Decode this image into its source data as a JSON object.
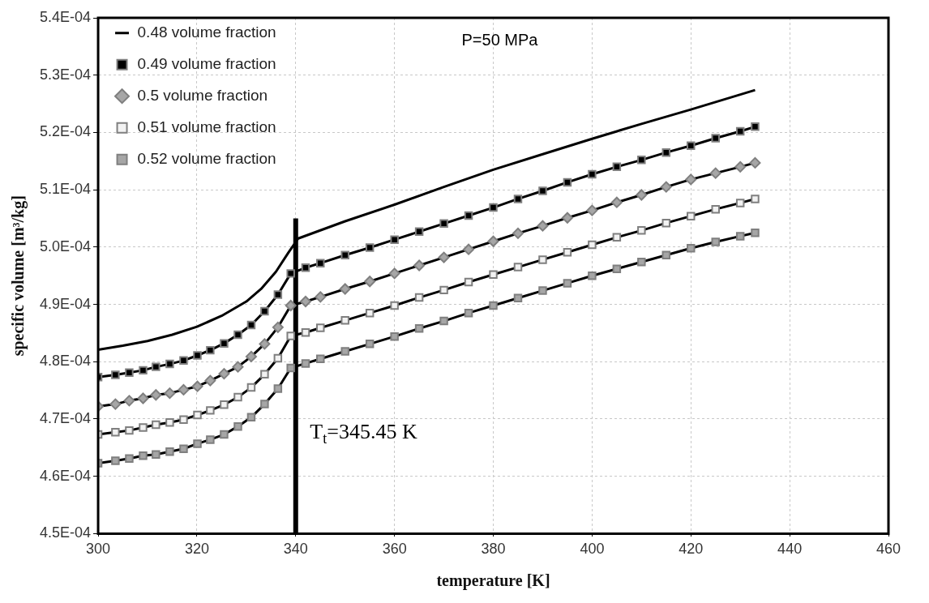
{
  "chart_data": {
    "type": "line",
    "xlabel": "temperature [K]",
    "ylabel": "specific volume [m³/kg]",
    "xlim": [
      300,
      460
    ],
    "xticks": [
      300,
      320,
      340,
      360,
      380,
      400,
      420,
      440,
      460
    ],
    "ylim": [
      0.00045,
      0.00054
    ],
    "yticks": [
      {
        "value": 0.00045,
        "label": "4.5E-04"
      },
      {
        "value": 0.00046,
        "label": "4.6E-04"
      },
      {
        "value": 0.00047,
        "label": "4.7E-04"
      },
      {
        "value": 0.00048,
        "label": "4.8E-04"
      },
      {
        "value": 0.00049,
        "label": "4.9E-04"
      },
      {
        "value": 0.0005,
        "label": "5.0E-04"
      },
      {
        "value": 0.00051,
        "label": "5.1E-04"
      },
      {
        "value": 0.00052,
        "label": "5.2E-04"
      },
      {
        "value": 0.00053,
        "label": "5.3E-04"
      },
      {
        "value": 0.00054,
        "label": "5.4E-04"
      }
    ],
    "grid": true,
    "legend": "top left",
    "line_style": "solid",
    "annotations": [
      "P=50 MPa",
      "T$_{t}$=345.45 K"
    ],
    "series": [
      {
        "name": "0.48 volume fraction",
        "color": "#000000",
        "marker": "none",
        "x": [
          300,
          305,
          310,
          315,
          320,
          325,
          330,
          333,
          336,
          338.5,
          340.5,
          350,
          360,
          370,
          380,
          390,
          400,
          410,
          420,
          433
        ],
        "values": [
          0.0004821,
          0.0004828,
          0.0004836,
          0.0004847,
          0.0004861,
          0.000488,
          0.0004905,
          0.0004927,
          0.0004957,
          0.000499,
          0.0005015,
          0.0005045,
          0.0005074,
          0.0005105,
          0.0005135,
          0.0005162,
          0.0005189,
          0.0005215,
          0.000524,
          0.0005274
        ]
      },
      {
        "name": "0.49 volume fraction",
        "color": "#000000",
        "marker": "square",
        "x": [
          300,
          303.5,
          306.3,
          309.1,
          311.7,
          314.5,
          317.3,
          320.1,
          322.7,
          325.5,
          328.3,
          331,
          333.7,
          336.4,
          339,
          342,
          345,
          350,
          355,
          360,
          365,
          370,
          375,
          380,
          385,
          390,
          395,
          400,
          405,
          410,
          415,
          420,
          425,
          430,
          433
        ],
        "values": [
          0.0004773,
          0.0004777,
          0.0004781,
          0.0004785,
          0.0004791,
          0.0004796,
          0.0004802,
          0.0004811,
          0.000482,
          0.0004832,
          0.0004847,
          0.0004864,
          0.0004888,
          0.0004917,
          0.0004954,
          0.0004964,
          0.0004972,
          0.0004986,
          0.0004999,
          0.0005013,
          0.0005027,
          0.0005041,
          0.0005055,
          0.0005069,
          0.0005084,
          0.0005098,
          0.0005113,
          0.0005127,
          0.000514,
          0.0005152,
          0.0005165,
          0.0005177,
          0.000519,
          0.0005202,
          0.000521
        ]
      },
      {
        "name": "0.5 volume fraction",
        "color": "#a6a6a6",
        "marker": "diamond",
        "x": [
          300,
          303.5,
          306.3,
          309.1,
          311.7,
          314.5,
          317.3,
          320.1,
          322.7,
          325.5,
          328.3,
          331,
          333.7,
          336.4,
          339,
          342,
          345,
          350,
          355,
          360,
          365,
          370,
          375,
          380,
          385,
          390,
          395,
          400,
          405,
          410,
          415,
          420,
          425,
          430,
          433
        ],
        "values": [
          0.0004722,
          0.0004726,
          0.0004732,
          0.0004736,
          0.0004742,
          0.0004745,
          0.0004751,
          0.0004757,
          0.0004767,
          0.0004779,
          0.0004791,
          0.0004809,
          0.0004831,
          0.000486,
          0.0004898,
          0.0004905,
          0.0004913,
          0.0004927,
          0.000494,
          0.0004954,
          0.0004968,
          0.0004982,
          0.0004996,
          0.000501,
          0.0005024,
          0.0005037,
          0.0005051,
          0.0005064,
          0.0005078,
          0.0005091,
          0.0005105,
          0.0005118,
          0.0005129,
          0.000514,
          0.0005147
        ]
      },
      {
        "name": "0.51 volume fraction",
        "color": "#f2f2f2",
        "marker": "square",
        "x": [
          300,
          303.5,
          306.3,
          309.1,
          311.7,
          314.5,
          317.3,
          320.1,
          322.7,
          325.5,
          328.3,
          331,
          333.7,
          336.4,
          339,
          342,
          345,
          350,
          355,
          360,
          365,
          370,
          375,
          380,
          385,
          390,
          395,
          400,
          405,
          410,
          415,
          420,
          425,
          430,
          433
        ],
        "values": [
          0.0004673,
          0.0004677,
          0.000468,
          0.0004685,
          0.000469,
          0.0004694,
          0.0004699,
          0.0004707,
          0.0004715,
          0.0004725,
          0.0004738,
          0.0004755,
          0.0004778,
          0.0004806,
          0.0004845,
          0.0004851,
          0.0004859,
          0.0004872,
          0.0004885,
          0.0004898,
          0.0004912,
          0.0004925,
          0.0004939,
          0.0004952,
          0.0004965,
          0.0004978,
          0.0004991,
          0.0005004,
          0.0005017,
          0.0005029,
          0.0005042,
          0.0005054,
          0.0005066,
          0.0005077,
          0.0005084
        ]
      },
      {
        "name": "0.52 volume fraction",
        "color": "#a6a6a6",
        "marker": "square",
        "x": [
          300,
          303.5,
          306.3,
          309.1,
          311.7,
          314.5,
          317.3,
          320.1,
          322.7,
          325.5,
          328.3,
          331,
          333.7,
          336.4,
          339,
          342,
          345,
          350,
          355,
          360,
          365,
          370,
          375,
          380,
          385,
          390,
          395,
          400,
          405,
          410,
          415,
          420,
          425,
          430,
          433
        ],
        "values": [
          0.0004623,
          0.0004627,
          0.0004631,
          0.0004636,
          0.0004638,
          0.0004643,
          0.0004648,
          0.0004657,
          0.0004664,
          0.0004673,
          0.0004687,
          0.0004703,
          0.0004726,
          0.0004753,
          0.0004789,
          0.0004797,
          0.0004805,
          0.0004818,
          0.0004831,
          0.0004844,
          0.0004858,
          0.0004871,
          0.0004885,
          0.0004898,
          0.0004911,
          0.0004924,
          0.0004937,
          0.000495,
          0.0004962,
          0.0004974,
          0.0004986,
          0.0004998,
          0.0005009,
          0.0005019,
          0.0005025
        ]
      },
      {
        "type": "line",
        "color": "#000000",
        "marker": "none",
        "x": [
          340,
          340
        ],
        "values": [
          0.00045,
          0.000505
        ]
      }
    ]
  }
}
